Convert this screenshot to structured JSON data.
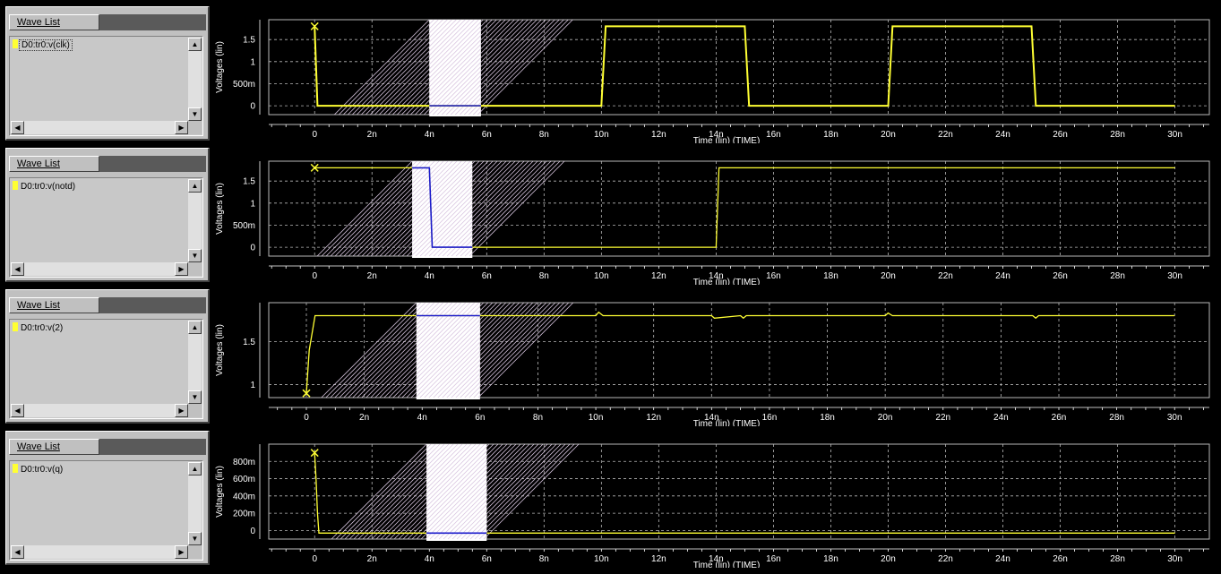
{
  "colors": {
    "background": "#000000",
    "grid": "#b8b8b8",
    "axis": "#ffffff",
    "trace": "#ffff33",
    "marker_trace": "#1a1acc",
    "marker_band": "#ffffff"
  },
  "panels": [
    {
      "wave_list": {
        "title": "Wave List",
        "item": "D0:tr0:v(clk)",
        "selected": true
      },
      "chart_data": {
        "type": "line",
        "ylabel": "Voltages (lin)",
        "xlabel": "Time (lin) (TIME)",
        "xlim": [
          -1.6,
          31.2
        ],
        "ylim": [
          -0.2,
          1.95
        ],
        "x_ticks": [
          "0",
          "2n",
          "4n",
          "6n",
          "8n",
          "10n",
          "12n",
          "14n",
          "16n",
          "18n",
          "20n",
          "22n",
          "24n",
          "26n",
          "28n",
          "30n"
        ],
        "x_tick_values": [
          0,
          2,
          4,
          6,
          8,
          10,
          12,
          14,
          16,
          18,
          20,
          22,
          24,
          26,
          28,
          30
        ],
        "y_ticks": [
          "0",
          "500m",
          "1",
          "1.5"
        ],
        "y_tick_values": [
          0,
          0.5,
          1,
          1.5
        ],
        "cursor": {
          "x": 0,
          "y": 1.8
        },
        "marker_band": [
          4.0,
          5.8
        ],
        "series": [
          {
            "x": [
              0,
              0.1,
              10.0,
              10.15,
              15.0,
              15.15,
              20.0,
              20.15,
              25.0,
              25.15,
              30.0
            ],
            "y": [
              1.8,
              0.0,
              0.0,
              1.8,
              1.8,
              0.0,
              0.0,
              1.8,
              1.8,
              0.0,
              0.0
            ]
          }
        ]
      }
    },
    {
      "wave_list": {
        "title": "Wave List",
        "item": "D0:tr0:v(notd)",
        "selected": false
      },
      "chart_data": {
        "type": "line",
        "ylabel": "Voltages (lin)",
        "xlabel": "Time (lin) (TIME)",
        "xlim": [
          -1.6,
          31.2
        ],
        "ylim": [
          -0.2,
          1.95
        ],
        "x_ticks": [
          "0",
          "2n",
          "4n",
          "6n",
          "8n",
          "10n",
          "12n",
          "14n",
          "16n",
          "18n",
          "20n",
          "22n",
          "24n",
          "26n",
          "28n",
          "30n"
        ],
        "x_tick_values": [
          0,
          2,
          4,
          6,
          8,
          10,
          12,
          14,
          16,
          18,
          20,
          22,
          24,
          26,
          28,
          30
        ],
        "y_ticks": [
          "0",
          "500m",
          "1",
          "1.5"
        ],
        "y_tick_values": [
          0,
          0.5,
          1,
          1.5
        ],
        "cursor": {
          "x": 0,
          "y": 1.8
        },
        "marker_band": [
          3.4,
          5.5
        ],
        "series": [
          {
            "x": [
              0,
              4.0,
              4.1,
              14.0,
              14.1,
              30.0
            ],
            "y": [
              1.8,
              1.8,
              0.0,
              0.0,
              1.8,
              1.8
            ]
          }
        ]
      }
    },
    {
      "wave_list": {
        "title": "Wave List",
        "item": "D0:tr0:v(2)",
        "selected": false
      },
      "chart_data": {
        "type": "line",
        "ylabel": "Voltages (lin)",
        "xlabel": "Time (lin) (TIME)",
        "xlim": [
          -1.3,
          31.2
        ],
        "ylim": [
          0.85,
          1.95
        ],
        "x_ticks": [
          "0",
          "2n",
          "4n",
          "6n",
          "8n",
          "10n",
          "12n",
          "14n",
          "16n",
          "18n",
          "20n",
          "22n",
          "24n",
          "26n",
          "28n",
          "30n"
        ],
        "x_tick_values": [
          0,
          2,
          4,
          6,
          8,
          10,
          12,
          14,
          16,
          18,
          20,
          22,
          24,
          26,
          28,
          30
        ],
        "y_ticks": [
          "1",
          "1.5"
        ],
        "y_tick_values": [
          1,
          1.5
        ],
        "cursor": {
          "x": 0,
          "y": 0.9
        },
        "marker_band": [
          3.8,
          6.0
        ],
        "series": [
          {
            "x": [
              0,
              0.1,
              0.3,
              10.0,
              10.1,
              10.25,
              14.0,
              14.1,
              15.0,
              15.1,
              15.2,
              20.0,
              20.1,
              20.25,
              25.1,
              25.2,
              25.3,
              30.0
            ],
            "y": [
              0.9,
              1.4,
              1.8,
              1.8,
              1.84,
              1.8,
              1.8,
              1.77,
              1.8,
              1.77,
              1.8,
              1.8,
              1.83,
              1.8,
              1.8,
              1.77,
              1.8,
              1.8
            ]
          }
        ]
      }
    },
    {
      "wave_list": {
        "title": "Wave List",
        "item": "D0:tr0:v(q)",
        "selected": false
      },
      "chart_data": {
        "type": "line",
        "ylabel": "Voltages (lin)",
        "xlabel": "Time (lin) (TIME)",
        "xlim": [
          -1.6,
          31.2
        ],
        "ylim": [
          -0.1,
          1.0
        ],
        "x_ticks": [
          "0",
          "2n",
          "4n",
          "6n",
          "8n",
          "10n",
          "12n",
          "14n",
          "16n",
          "18n",
          "20n",
          "22n",
          "24n",
          "26n",
          "28n",
          "30n"
        ],
        "x_tick_values": [
          0,
          2,
          4,
          6,
          8,
          10,
          12,
          14,
          16,
          18,
          20,
          22,
          24,
          26,
          28,
          30
        ],
        "y_ticks": [
          "0",
          "200m",
          "400m",
          "600m",
          "800m"
        ],
        "y_tick_values": [
          0,
          0.2,
          0.4,
          0.6,
          0.8
        ],
        "cursor": {
          "x": 0,
          "y": 0.9
        },
        "marker_band": [
          3.9,
          6.0
        ],
        "series": [
          {
            "x": [
              0,
              0.05,
              0.1,
              0.15,
              30.0
            ],
            "y": [
              0.9,
              0.6,
              0.2,
              -0.03,
              -0.03
            ]
          }
        ]
      }
    }
  ]
}
